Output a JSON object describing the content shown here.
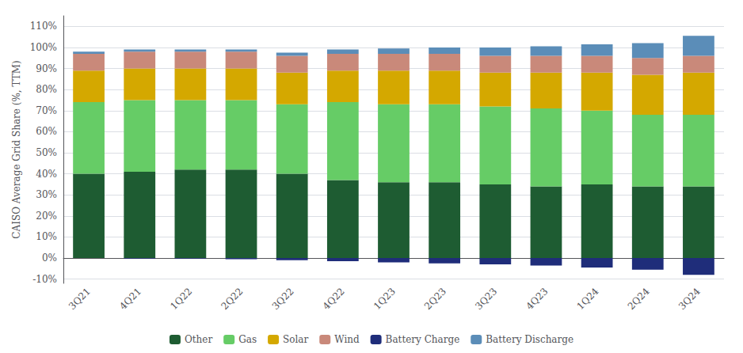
{
  "chart_data": {
    "type": "bar",
    "stacked": true,
    "categories": [
      "3Q21",
      "4Q21",
      "1Q22",
      "2Q22",
      "3Q22",
      "4Q22",
      "1Q23",
      "2Q23",
      "3Q23",
      "4Q23",
      "1Q24",
      "2Q24",
      "3Q24"
    ],
    "series": [
      {
        "name": "Other",
        "color": "#1e5c32",
        "values": [
          40,
          41,
          42,
          42,
          40,
          37,
          36,
          36,
          35,
          34,
          35,
          34,
          34
        ]
      },
      {
        "name": "Gas",
        "color": "#66cc66",
        "values": [
          34,
          34,
          33,
          33,
          33,
          37,
          37,
          37,
          37,
          37,
          35,
          34,
          34
        ]
      },
      {
        "name": "Solar",
        "color": "#d4a800",
        "values": [
          15,
          15,
          15,
          15,
          15,
          15,
          16,
          16,
          16,
          17,
          18,
          19,
          20
        ]
      },
      {
        "name": "Wind",
        "color": "#c9897a",
        "values": [
          8,
          8,
          8,
          8,
          8,
          8,
          8,
          8,
          8,
          8,
          8,
          8,
          8
        ]
      },
      {
        "name": "Battery Charge",
        "color": "#1f2d7a",
        "values": [
          0.0,
          -0.3,
          -0.3,
          -0.5,
          -1.0,
          -1.5,
          -2.0,
          -2.5,
          -3.0,
          -3.5,
          -4.5,
          -5.5,
          -8.0
        ]
      },
      {
        "name": "Battery Discharge",
        "color": "#5b8db8",
        "values": [
          1.0,
          1.0,
          1.0,
          1.0,
          1.5,
          2.0,
          2.5,
          3.0,
          4.0,
          4.5,
          5.5,
          7.0,
          9.5
        ]
      }
    ],
    "ylabel": "CAISO Average Grid Share (%, TTM)",
    "ylim": [
      -12,
      115
    ],
    "yticks": [
      {
        "value": -10,
        "label": "-10%"
      },
      {
        "value": 0,
        "label": "0%"
      },
      {
        "value": 10,
        "label": "10%"
      },
      {
        "value": 20,
        "label": "20%"
      },
      {
        "value": 30,
        "label": "30%"
      },
      {
        "value": 40,
        "label": "40%"
      },
      {
        "value": 50,
        "label": "50%"
      },
      {
        "value": 60,
        "label": "60%"
      },
      {
        "value": 70,
        "label": "70%"
      },
      {
        "value": 80,
        "label": "80%"
      },
      {
        "value": 90,
        "label": "90%"
      },
      {
        "value": 100,
        "label": "100%"
      },
      {
        "value": 110,
        "label": "110%"
      }
    ],
    "grid": true,
    "legend": "bottom"
  }
}
